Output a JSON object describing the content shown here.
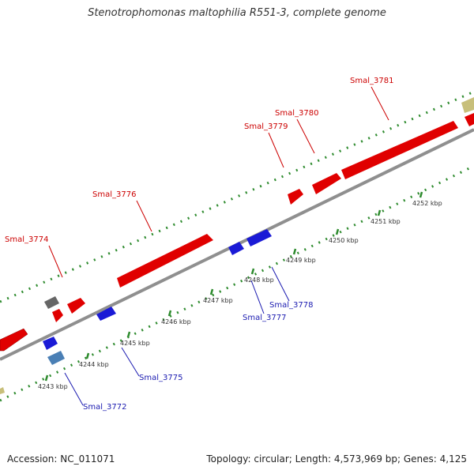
{
  "title": "Stenotrophomonas maltophilia R551-3, complete genome",
  "footer": {
    "accession": "Accession: NC_011071",
    "summary": "Topology: circular; Length: 4,573,969 bp; Genes: 4,125"
  },
  "colors": {
    "forward_gene": "#ee0000",
    "reverse_gene": "#1a1ad6",
    "backbone": "#888888",
    "ticks": "#2e8b2e",
    "forward_label": "#cc0000",
    "reverse_label": "#1a1ab0"
  },
  "ticks": [
    "4243 kbp",
    "4244 kbp",
    "4245 kbp",
    "4246 kbp",
    "4247 kbp",
    "4248 kbp",
    "4249 kbp",
    "4250 kbp",
    "4251 kbp",
    "4252 kbp"
  ],
  "labels": {
    "forward": [
      "Smal_3774",
      "Smal_3776",
      "Smal_3779",
      "Smal_3780",
      "Smal_3781"
    ],
    "reverse": [
      "Smal_3772",
      "Smal_3775",
      "Smal_3777",
      "Smal_3778"
    ]
  }
}
